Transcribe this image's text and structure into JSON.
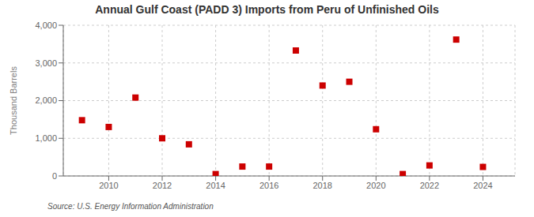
{
  "chart_data": {
    "type": "scatter",
    "title": "Annual Gulf Coast (PADD 3) Imports from Peru of Unfinished Oils",
    "ylabel": "Thousand Barrels",
    "source": "Source: U.S. Energy Information Administration",
    "x": [
      2009,
      2010,
      2011,
      2012,
      2013,
      2014,
      2015,
      2016,
      2017,
      2018,
      2019,
      2020,
      2021,
      2022,
      2023,
      2024
    ],
    "values": [
      1480,
      1300,
      2080,
      1000,
      840,
      50,
      250,
      250,
      3330,
      2400,
      2500,
      1240,
      50,
      280,
      3620,
      240
    ],
    "color": "#cc0000",
    "marker": "square",
    "xlim": [
      2008.3,
      2025.2
    ],
    "xticks": [
      2010,
      2012,
      2014,
      2016,
      2018,
      2020,
      2022,
      2024
    ],
    "ylim": [
      0,
      4000
    ],
    "yticks": [
      0,
      {
        "value": 1000,
        "label": "1,000"
      },
      {
        "value": 2000,
        "label": "2,000"
      },
      {
        "value": 3000,
        "label": "3,000"
      },
      {
        "value": 4000,
        "label": "4,000"
      }
    ],
    "grid": true
  }
}
